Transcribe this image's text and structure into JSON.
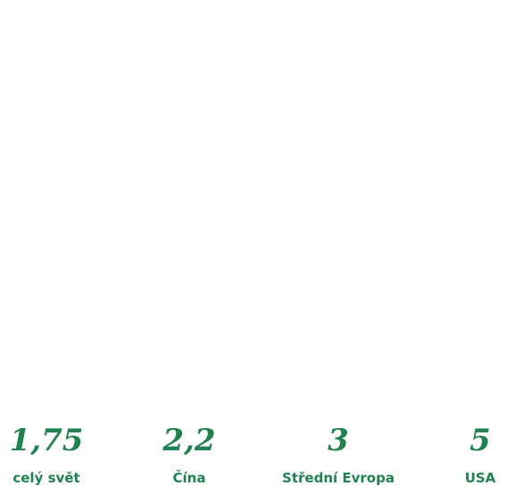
{
  "chart_data": {
    "type": "bar",
    "unit_note": "",
    "categories": [
      "celý svět",
      "Čína",
      "Střední Evropa",
      "USA"
    ],
    "value_labels": [
      "1,75",
      "2,2",
      "3",
      "5"
    ],
    "values": [
      1.75,
      2.2,
      3,
      5
    ],
    "title": "",
    "xlabel": "",
    "ylabel": ""
  },
  "colors": {
    "accent": "#1f8250",
    "background": "#ffffff"
  },
  "icon": "globe-icon"
}
